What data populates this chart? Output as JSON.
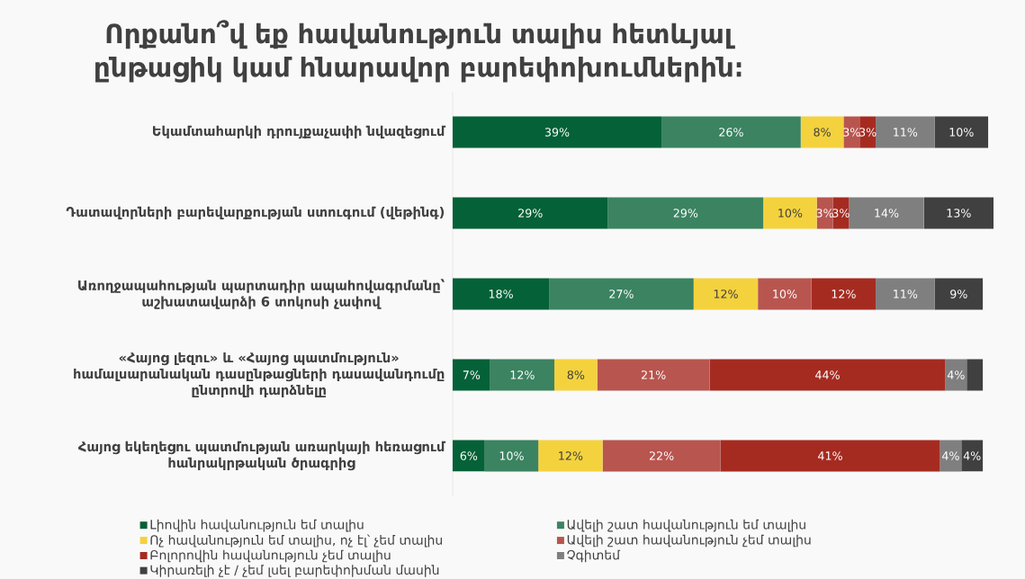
{
  "chart_data": {
    "type": "bar",
    "orientation": "horizontal",
    "stacked": true,
    "title": "Որքանո՞վ եք հավանություն տալիս հետևյալ ընթացիկ կամ հնարավոր բարեփոխումներին։",
    "categories": [
      "Եկամտահարկի դրույքաչափի նվազեցում",
      "Դատավորների բարեվարքության ստուգում (վեթինգ)",
      "Առողջապահության պարտադիր ապահովագրմանը՝ աշխատավարձի 6 տոկոսի չափով",
      "«Հայոց լեզու» և «Հայոց պատմություն» համալսարանական դասընթացների դասավանդումը ընտրովի դարձնելը",
      "Հայոց եկեղեցու պատմության առարկայի հեռացում հանրակրթական ծրագրից"
    ],
    "series": [
      {
        "name": "Լիովին հավանություն եմ տալիս",
        "color": "#056137",
        "values": [
          39,
          29,
          18,
          7,
          6
        ],
        "value_labels": [
          "39%",
          "29%",
          "18%",
          "7%",
          "6%"
        ]
      },
      {
        "name": "Ավելի շատ հավանություն եմ տալիս",
        "color": "#3b8361",
        "values": [
          26,
          29,
          27,
          12,
          10
        ],
        "value_labels": [
          "26%",
          "29%",
          "27%",
          "12%",
          "10%"
        ]
      },
      {
        "name": "Ոչ հավանություն եմ տալիս, ոչ էլ՝ չեմ տալիս",
        "color": "#f4d23e",
        "values": [
          8,
          10,
          12,
          8,
          12
        ],
        "value_labels": [
          "8%",
          "10%",
          "12%",
          "8%",
          "12%"
        ]
      },
      {
        "name": "Ավելի շատ հավանություն չեմ տալիս",
        "color": "#b8554f",
        "values": [
          3,
          3,
          10,
          21,
          22
        ],
        "value_labels": [
          "3%",
          "3%",
          "10%",
          "21%",
          "22%"
        ]
      },
      {
        "name": "Բոլորովին հավանություն չեմ տալիս",
        "color": "#a52b21",
        "values": [
          3,
          3,
          12,
          44,
          41
        ],
        "value_labels": [
          "3%",
          "3%",
          "12%",
          "44%",
          "41%"
        ]
      },
      {
        "name": "Չգիտեմ",
        "color": "#7f7f7f",
        "values": [
          11,
          14,
          11,
          4,
          4
        ],
        "value_labels": [
          "11%",
          "14%",
          "11%",
          "4%",
          "4%"
        ]
      },
      {
        "name": "Կիրառելի չէ / չեմ լսել բարեփոխման մասին",
        "color": "#404040",
        "values": [
          10,
          13,
          9,
          3,
          4
        ],
        "value_labels": [
          "10%",
          "13%",
          "9%",
          null,
          "4%"
        ]
      }
    ],
    "legend": "bottom",
    "grid": false,
    "tick_labels": "y"
  }
}
